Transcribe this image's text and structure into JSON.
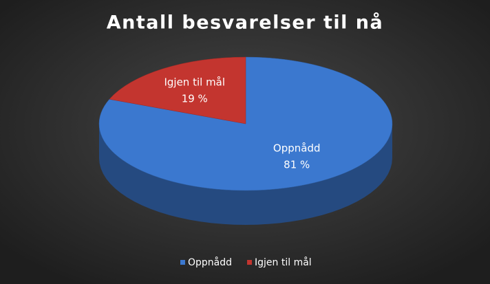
{
  "chart_data": {
    "type": "pie3d",
    "title": "Antall besvarelser til nå",
    "categories": [
      "Oppnådd",
      "Igjen til mål"
    ],
    "values": [
      81,
      19
    ],
    "value_labels": [
      "81 %",
      "19 %"
    ],
    "colors": [
      "#3b78cf",
      "#c3352f"
    ],
    "legend": "bottom"
  }
}
